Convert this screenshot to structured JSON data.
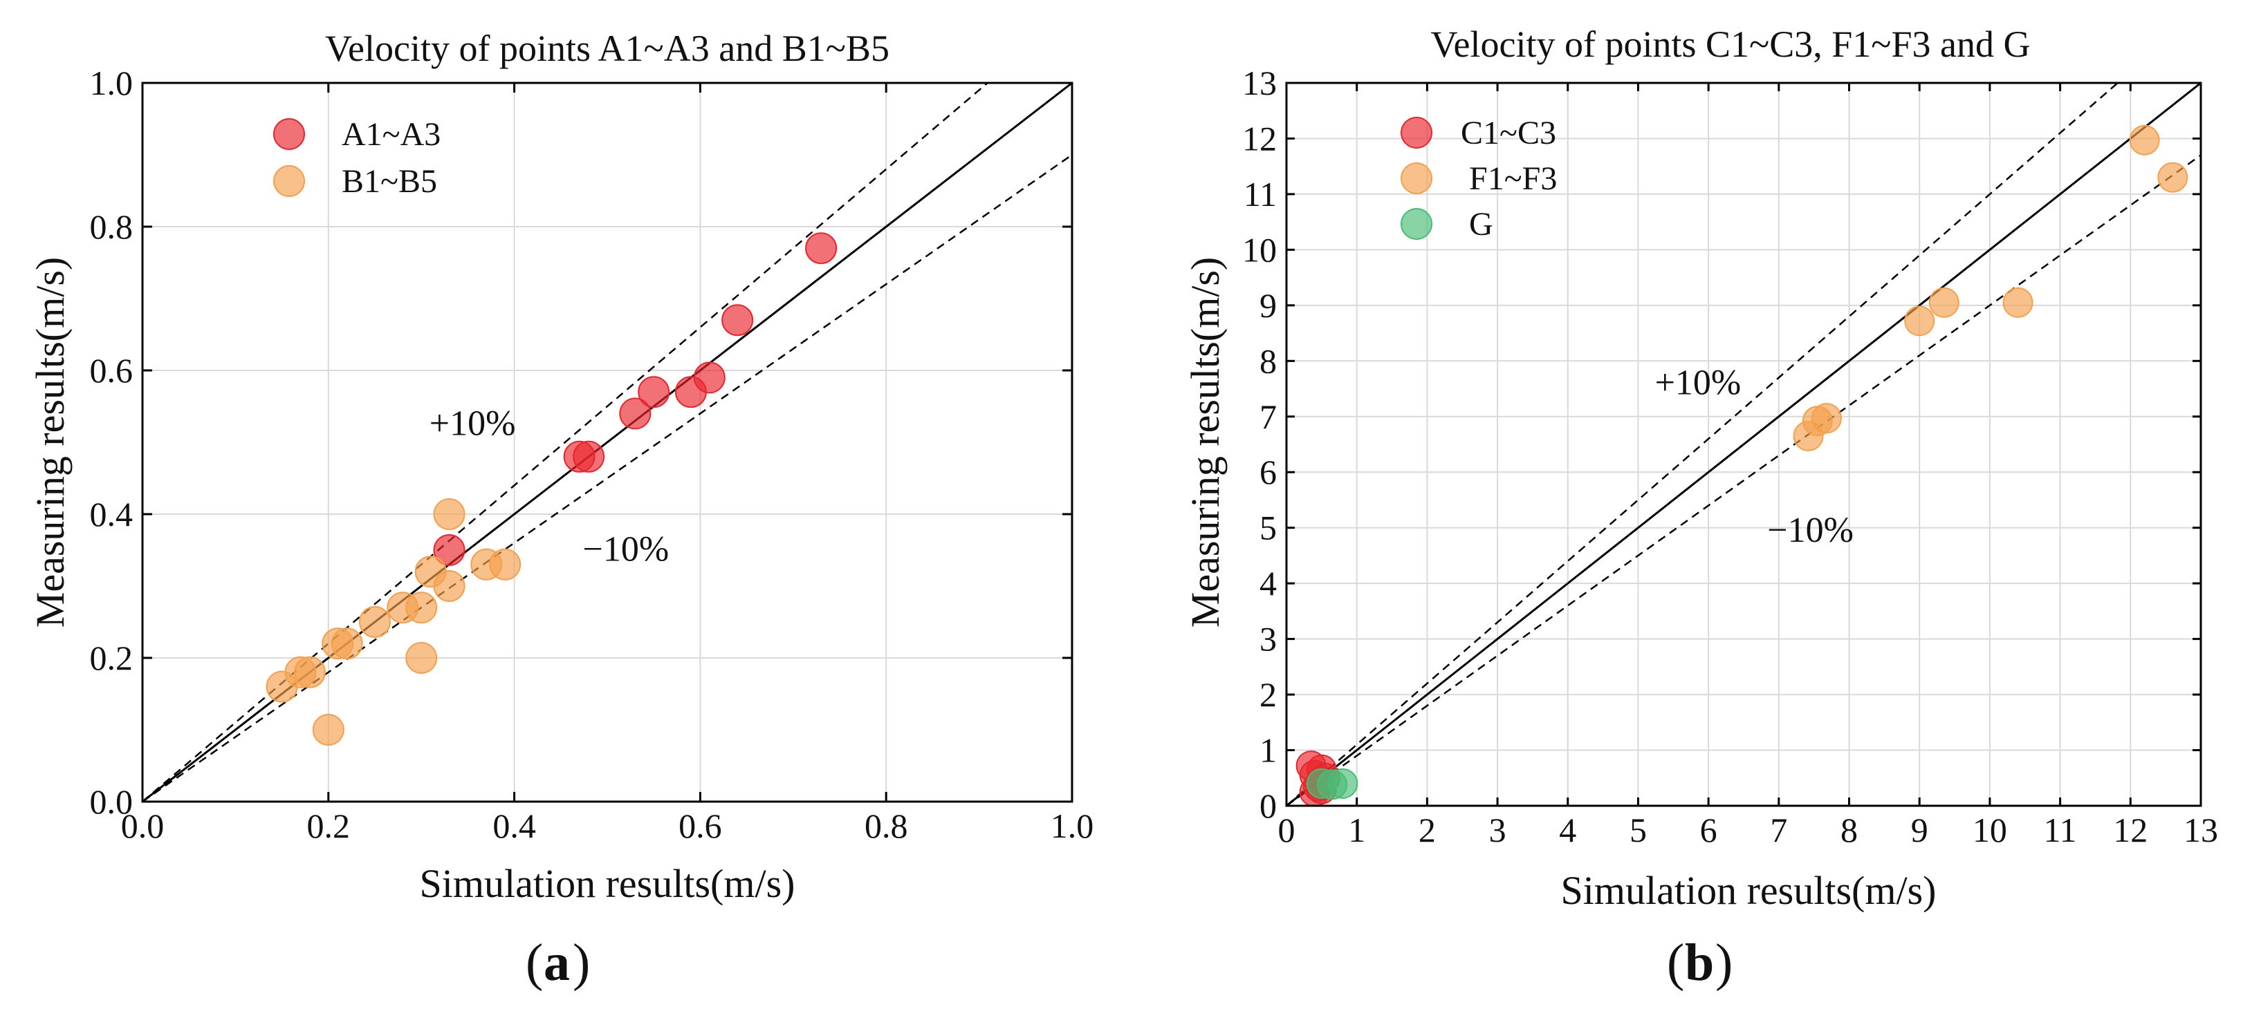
{
  "chart_data": [
    {
      "panel": "(a)",
      "panel_letter": "a",
      "type": "scatter",
      "title": "Velocity of points A1~A3 and B1~B5",
      "xlabel": "Simulation results(m/s)",
      "ylabel": "Measuring results(m/s)",
      "xlim": [
        0.0,
        1.0
      ],
      "ylim": [
        0.0,
        1.0
      ],
      "xticks": [
        0.0,
        0.2,
        0.4,
        0.6,
        0.8,
        1.0
      ],
      "yticks": [
        0.0,
        0.2,
        0.4,
        0.6,
        0.8,
        1.0
      ],
      "xticklabels": [
        "0.0",
        "0.2",
        "0.4",
        "0.6",
        "0.8",
        "1.0"
      ],
      "yticklabels": [
        "0.0",
        "0.2",
        "0.4",
        "0.6",
        "0.8",
        "1.0"
      ],
      "grid": true,
      "legend_position": "top-left",
      "reference_lines": [
        {
          "slope": 1.0,
          "style": "solid"
        },
        {
          "slope": 1.1,
          "style": "dashed",
          "label": "+10%",
          "label_at": [
            0.355,
            0.51
          ]
        },
        {
          "slope": 0.9,
          "style": "dashed",
          "label": "−10%",
          "label_at": [
            0.52,
            0.335
          ]
        }
      ],
      "series": [
        {
          "name": "A1~A3",
          "color": "#e8262e",
          "x": [
            0.33,
            0.47,
            0.48,
            0.53,
            0.55,
            0.59,
            0.61,
            0.64,
            0.73
          ],
          "y": [
            0.35,
            0.48,
            0.48,
            0.54,
            0.57,
            0.57,
            0.59,
            0.67,
            0.77
          ]
        },
        {
          "name": "B1~B5",
          "color": "#f5a04d",
          "x": [
            0.15,
            0.17,
            0.18,
            0.2,
            0.21,
            0.22,
            0.25,
            0.28,
            0.3,
            0.3,
            0.31,
            0.33,
            0.33,
            0.37,
            0.39
          ],
          "y": [
            0.16,
            0.18,
            0.18,
            0.1,
            0.22,
            0.22,
            0.25,
            0.27,
            0.27,
            0.2,
            0.32,
            0.3,
            0.4,
            0.33,
            0.33
          ]
        }
      ]
    },
    {
      "panel": "(b)",
      "panel_letter": "b",
      "type": "scatter",
      "title": "Velocity of points C1~C3, F1~F3 and G",
      "xlabel": "Simulation results(m/s)",
      "ylabel": "Measuring results(m/s)",
      "xlim": [
        0,
        13
      ],
      "ylim": [
        0,
        13
      ],
      "xticks": [
        0,
        1,
        2,
        3,
        4,
        5,
        6,
        7,
        8,
        9,
        10,
        11,
        12,
        13
      ],
      "yticks": [
        0,
        1,
        2,
        3,
        4,
        5,
        6,
        7,
        8,
        9,
        10,
        11,
        12,
        13
      ],
      "xticklabels": [
        "0",
        "1",
        "2",
        "3",
        "4",
        "5",
        "6",
        "7",
        "8",
        "9",
        "10",
        "11",
        "12",
        "13"
      ],
      "yticklabels": [
        "0",
        "1",
        "2",
        "3",
        "4",
        "5",
        "6",
        "7",
        "8",
        "9",
        "10",
        "11",
        "12",
        "13"
      ],
      "grid": true,
      "legend_position": "top-left",
      "reference_lines": [
        {
          "slope": 1.0,
          "style": "solid"
        },
        {
          "slope": 1.1,
          "style": "dashed",
          "label": "+10%",
          "label_at": [
            5.85,
            7.4
          ]
        },
        {
          "slope": 0.9,
          "style": "dashed",
          "label": "−10%",
          "label_at": [
            7.45,
            4.75
          ]
        }
      ],
      "series": [
        {
          "name": "C1~C3",
          "color": "#e8262e",
          "x": [
            0.35,
            0.4,
            0.45,
            0.5,
            0.55,
            0.4,
            0.5
          ],
          "y": [
            0.72,
            0.55,
            0.35,
            0.65,
            0.5,
            0.25,
            0.3
          ]
        },
        {
          "name": "F1~F3",
          "color": "#f5a04d",
          "x": [
            7.42,
            7.55,
            7.68,
            9.0,
            9.35,
            10.4,
            12.2,
            12.6
          ],
          "y": [
            6.65,
            6.92,
            6.97,
            8.72,
            9.05,
            9.05,
            11.97,
            11.3
          ]
        },
        {
          "name": "G",
          "color": "#48bd74",
          "x": [
            0.5,
            0.65,
            0.8
          ],
          "y": [
            0.4,
            0.38,
            0.4
          ]
        }
      ]
    }
  ]
}
